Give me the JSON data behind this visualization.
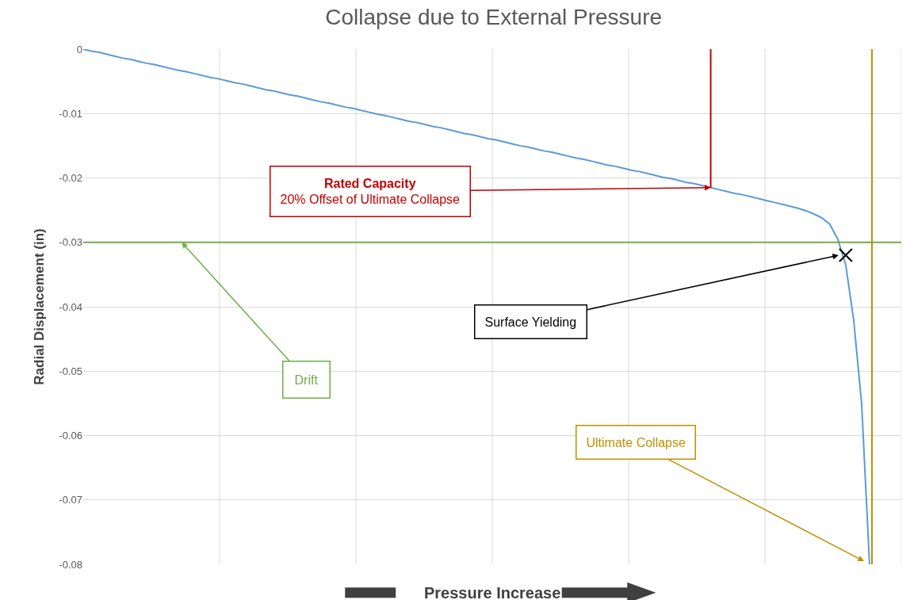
{
  "chart_data": {
    "type": "line",
    "title": "Collapse due to External Pressure",
    "xlabel": "Pressure Increase",
    "ylabel": "Radial Displacement (in)",
    "categories": [
      null,
      null,
      null,
      null,
      null,
      null,
      null,
      null,
      null,
      null,
      null,
      null,
      null,
      null,
      null,
      null,
      null,
      null,
      null,
      null,
      null,
      null,
      null,
      null,
      null,
      null,
      null,
      null,
      null,
      null,
      null,
      null,
      null,
      null,
      null,
      null,
      null,
      null,
      null,
      null,
      null,
      null,
      null,
      null,
      null,
      null,
      null,
      null,
      null,
      null,
      null,
      null,
      null,
      null,
      null,
      null,
      null,
      null,
      null,
      null,
      null,
      null,
      null,
      null,
      null,
      null,
      null,
      null,
      null,
      null,
      null,
      null,
      null,
      null,
      null,
      null,
      null,
      null,
      null,
      null,
      null,
      null,
      null,
      null,
      null,
      null,
      null,
      null,
      null,
      null,
      null,
      null,
      null,
      null,
      null,
      null,
      null,
      null,
      null,
      null,
      null,
      null,
      null,
      null
    ],
    "series": [
      {
        "color": "#5b9bd5",
        "values": [
          0,
          -0.0003,
          -0.0005,
          -0.0008,
          -0.0011,
          -0.0014,
          -0.0016,
          -0.0019,
          -0.0022,
          -0.0024,
          -0.0027,
          -0.003,
          -0.0033,
          -0.0035,
          -0.0038,
          -0.0041,
          -0.0044,
          -0.0046,
          -0.0049,
          -0.0052,
          -0.0054,
          -0.0057,
          -0.006,
          -0.0063,
          -0.0065,
          -0.0068,
          -0.0071,
          -0.0073,
          -0.0076,
          -0.0079,
          -0.0082,
          -0.0084,
          -0.0087,
          -0.009,
          -0.0092,
          -0.0095,
          -0.0098,
          -0.0101,
          -0.0103,
          -0.0106,
          -0.0109,
          -0.0112,
          -0.0114,
          -0.0117,
          -0.012,
          -0.0122,
          -0.0125,
          -0.0128,
          -0.0131,
          -0.0133,
          -0.0136,
          -0.0139,
          -0.0141,
          -0.0144,
          -0.0147,
          -0.015,
          -0.0152,
          -0.0155,
          -0.0158,
          -0.016,
          -0.0163,
          -0.0166,
          -0.0169,
          -0.0171,
          -0.0174,
          -0.0177,
          -0.018,
          -0.0182,
          -0.0185,
          -0.0188,
          -0.019,
          -0.0193,
          -0.0196,
          -0.0199,
          -0.0201,
          -0.0204,
          -0.0207,
          -0.0209,
          -0.0212,
          -0.0215,
          -0.0218,
          -0.0221,
          -0.0224,
          -0.0226,
          -0.0229,
          -0.0232,
          -0.0235,
          -0.0238,
          -0.0241,
          -0.0244,
          -0.0247,
          -0.0251,
          -0.0256,
          -0.0262,
          -0.0272,
          -0.0295,
          -0.0335,
          -0.042,
          -0.055,
          -0.08,
          null,
          null,
          null,
          null
        ]
      },
      {
        "type": "scatter",
        "marker": "cross",
        "color": "#000000",
        "values": [
          null,
          null,
          null,
          null,
          null,
          null,
          null,
          null,
          null,
          null,
          null,
          null,
          null,
          null,
          null,
          null,
          null,
          null,
          null,
          null,
          null,
          null,
          null,
          null,
          null,
          null,
          null,
          null,
          null,
          null,
          null,
          null,
          null,
          null,
          null,
          null,
          null,
          null,
          null,
          null,
          null,
          null,
          null,
          null,
          null,
          null,
          null,
          null,
          null,
          null,
          null,
          null,
          null,
          null,
          null,
          null,
          null,
          null,
          null,
          null,
          null,
          null,
          null,
          null,
          null,
          null,
          null,
          null,
          null,
          null,
          null,
          null,
          null,
          null,
          null,
          null,
          null,
          null,
          null,
          null,
          null,
          null,
          null,
          null,
          null,
          null,
          null,
          null,
          null,
          null,
          null,
          null,
          null,
          null,
          null,
          null,
          -0.032,
          null,
          null,
          null,
          null,
          null,
          null,
          null
        ]
      }
    ],
    "ref_lines": [
      {
        "axis": "y",
        "value": -0.03,
        "label": "Drift",
        "color": "#70ad47"
      }
    ],
    "annotations": [
      "Rated Capacity\n20% Offset of Ultimate Collapse",
      "Surface Yielding",
      "Ultimate Collapse"
    ],
    "ylim": [
      -0.08,
      0
    ],
    "yticks": [
      0,
      -0.01,
      -0.02,
      -0.03,
      -0.04,
      -0.05,
      -0.06,
      -0.07,
      -0.08
    ],
    "grid": true
  }
}
